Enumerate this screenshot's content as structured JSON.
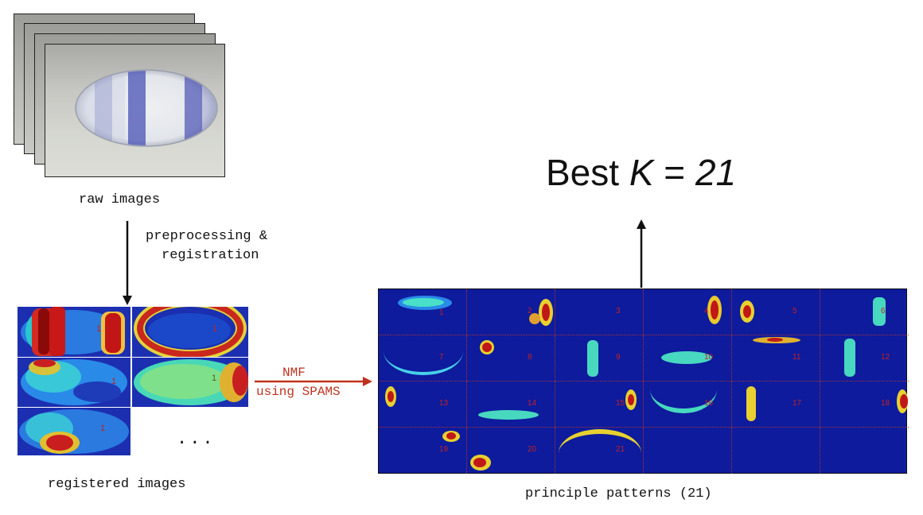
{
  "raw_images": {
    "caption": "raw images"
  },
  "step1": {
    "line1": "preprocessing &",
    "line2": "registration"
  },
  "registered": {
    "caption": "registered images",
    "ellipsis": "...",
    "tile_number": "1"
  },
  "nmf": {
    "line1": "NMF",
    "line2": "using SPAMS",
    "color": "#c0321e"
  },
  "patterns": {
    "caption": "principle patterns (21)",
    "labels": [
      "1",
      "2",
      "3",
      "4",
      "5",
      "6",
      "7",
      "8",
      "9",
      "10",
      "11",
      "12",
      "13",
      "14",
      "15",
      "16",
      "17",
      "18",
      "19",
      "20",
      "21"
    ]
  },
  "result": {
    "prefix": "Best ",
    "k": "K",
    "equals": " = ",
    "value": "21"
  },
  "colors": {
    "jet_background": "#1c2fb0",
    "arrow_black": "#111111",
    "arrow_red": "#c0321e"
  }
}
